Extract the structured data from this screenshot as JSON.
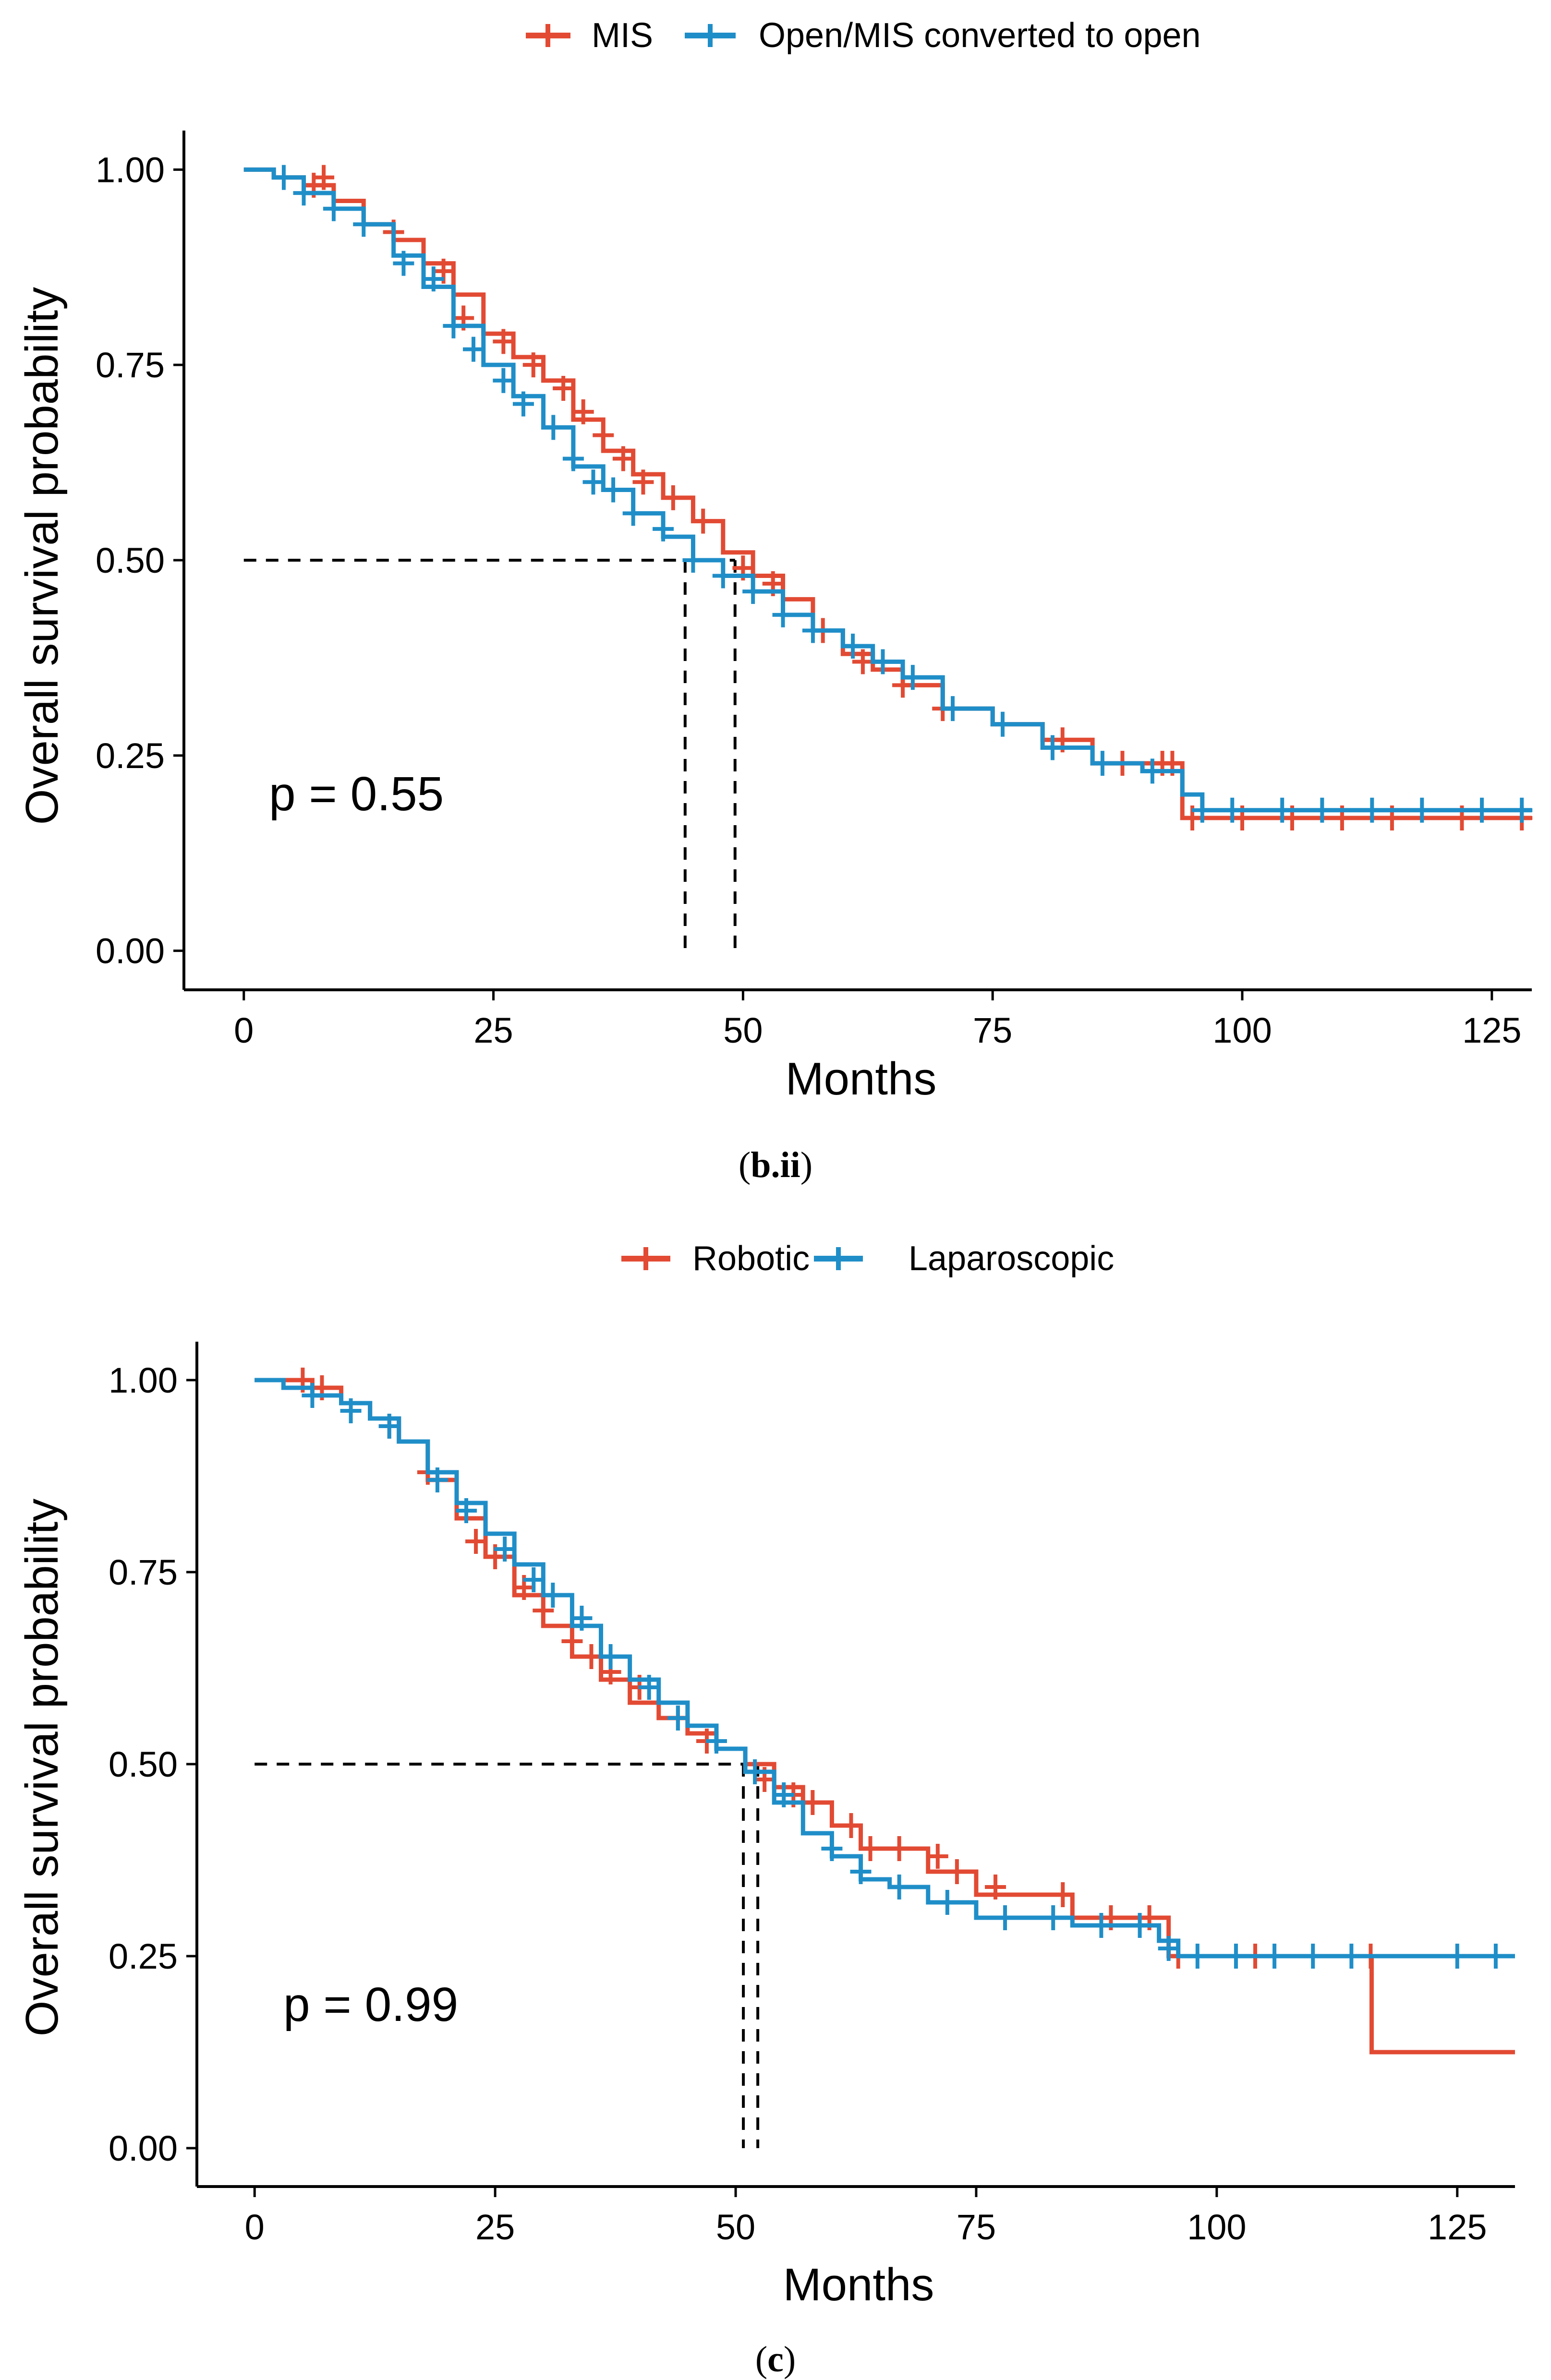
{
  "colors": {
    "series_a": "#e24a33",
    "series_b": "#1f8ec8",
    "axis": "#000000",
    "reference": "#000000"
  },
  "chart_data": [
    {
      "type": "line",
      "subtype": "kaplan-meier",
      "title": "",
      "xlabel": "Months",
      "ylabel": "Overall survival probability",
      "xlim": [
        -6,
        129
      ],
      "ylim": [
        -0.05,
        1.05
      ],
      "x_ticks": [
        0,
        25,
        50,
        75,
        100,
        125
      ],
      "y_ticks": [
        0,
        0.25,
        0.5,
        0.75,
        1.0
      ],
      "x_tick_labels": [
        "0",
        "25",
        "50",
        "75",
        "100",
        "125"
      ],
      "y_tick_labels": [
        "0.00",
        "0.25",
        "0.50",
        "0.75",
        "1.00"
      ],
      "grid": false,
      "legend_position": "top",
      "annotation": "p = 0.55",
      "annotation_at": [
        2.5,
        0.19
      ],
      "median_reference": {
        "y": 0.5,
        "x_start": 0,
        "x_values": [
          44.2,
          49.2
        ]
      },
      "caption_bold": "b.ii",
      "caption_open": "(",
      "caption_close": ")",
      "series": [
        {
          "name": "MIS",
          "color": "#e24a33",
          "x": [
            0,
            3,
            6,
            9,
            12,
            15,
            18,
            21,
            24,
            27,
            30,
            33,
            36,
            39,
            42,
            45,
            48,
            51,
            54,
            57,
            60,
            63,
            66,
            70,
            75,
            80,
            85,
            90,
            94,
            96,
            100,
            110,
            120,
            129
          ],
          "y": [
            1.0,
            0.99,
            0.98,
            0.96,
            0.93,
            0.91,
            0.88,
            0.84,
            0.79,
            0.76,
            0.73,
            0.68,
            0.64,
            0.61,
            0.58,
            0.55,
            0.51,
            0.48,
            0.45,
            0.41,
            0.38,
            0.36,
            0.34,
            0.31,
            0.29,
            0.27,
            0.24,
            0.24,
            0.17,
            0.17,
            0.17,
            0.17,
            0.17,
            0.17
          ],
          "censor_x": [
            7,
            8,
            15,
            20,
            22,
            26,
            29,
            32,
            34,
            36,
            38,
            40,
            43,
            46,
            50,
            53,
            58,
            62,
            66,
            70,
            82,
            88,
            92,
            93,
            95,
            100,
            105,
            110,
            115,
            122,
            128
          ],
          "censor_y": [
            0.98,
            0.99,
            0.92,
            0.87,
            0.81,
            0.78,
            0.75,
            0.72,
            0.69,
            0.66,
            0.63,
            0.6,
            0.58,
            0.55,
            0.49,
            0.47,
            0.41,
            0.37,
            0.34,
            0.31,
            0.27,
            0.24,
            0.24,
            0.24,
            0.17,
            0.17,
            0.17,
            0.17,
            0.17,
            0.17,
            0.17
          ]
        },
        {
          "name": "Open/MIS converted to open",
          "color": "#1f8ec8",
          "x": [
            0,
            3,
            6,
            9,
            12,
            15,
            18,
            21,
            24,
            27,
            30,
            33,
            36,
            39,
            42,
            45,
            48,
            51,
            54,
            57,
            60,
            63,
            66,
            70,
            75,
            80,
            85,
            90,
            94,
            96,
            100,
            110,
            120,
            129
          ],
          "y": [
            1.0,
            0.99,
            0.97,
            0.95,
            0.93,
            0.89,
            0.85,
            0.8,
            0.75,
            0.71,
            0.67,
            0.62,
            0.59,
            0.56,
            0.53,
            0.5,
            0.48,
            0.46,
            0.43,
            0.41,
            0.39,
            0.37,
            0.35,
            0.31,
            0.29,
            0.26,
            0.24,
            0.23,
            0.2,
            0.18,
            0.18,
            0.18,
            0.18,
            0.18
          ],
          "censor_x": [
            4,
            6,
            9,
            12,
            16,
            19,
            21,
            23,
            26,
            28,
            31,
            33,
            35,
            37,
            39,
            42,
            45,
            48,
            51,
            54,
            57,
            61,
            64,
            67,
            71,
            76,
            81,
            86,
            91,
            96,
            99,
            104,
            108,
            113,
            118,
            124,
            128
          ],
          "censor_y": [
            0.99,
            0.97,
            0.95,
            0.93,
            0.88,
            0.86,
            0.8,
            0.77,
            0.73,
            0.7,
            0.67,
            0.63,
            0.6,
            0.59,
            0.56,
            0.54,
            0.5,
            0.48,
            0.46,
            0.43,
            0.41,
            0.39,
            0.37,
            0.35,
            0.31,
            0.29,
            0.26,
            0.24,
            0.23,
            0.18,
            0.18,
            0.18,
            0.18,
            0.18,
            0.18,
            0.18,
            0.18
          ]
        }
      ]
    },
    {
      "type": "line",
      "subtype": "kaplan-meier",
      "title": "",
      "xlabel": "Months",
      "ylabel": "Overall survival probability",
      "xlim": [
        -6,
        131
      ],
      "ylim": [
        -0.05,
        1.05
      ],
      "x_ticks": [
        0,
        25,
        50,
        75,
        100,
        125
      ],
      "y_ticks": [
        0,
        0.25,
        0.5,
        0.75,
        1.0
      ],
      "x_tick_labels": [
        "0",
        "25",
        "50",
        "75",
        "100",
        "125"
      ],
      "y_tick_labels": [
        "0.00",
        "0.25",
        "0.50",
        "0.75",
        "1.00"
      ],
      "grid": false,
      "legend_position": "top",
      "annotation": "p = 0.99",
      "annotation_at": [
        2.5,
        0.19
      ],
      "median_reference": {
        "y": 0.5,
        "x_start": 0,
        "x_values": [
          50.8,
          52.3
        ]
      },
      "caption_bold": "c",
      "caption_open": "(",
      "caption_close": ")",
      "series": [
        {
          "name": "Robotic",
          "color": "#e24a33",
          "x": [
            0,
            3,
            6,
            9,
            12,
            15,
            18,
            21,
            24,
            27,
            30,
            33,
            36,
            39,
            42,
            45,
            48,
            51,
            54,
            57,
            60,
            63,
            66,
            70,
            75,
            80,
            85,
            90,
            95,
            100,
            110,
            116,
            116.1,
            125,
            131
          ],
          "y": [
            1.0,
            1.0,
            0.99,
            0.97,
            0.95,
            0.92,
            0.87,
            0.82,
            0.77,
            0.72,
            0.68,
            0.64,
            0.61,
            0.58,
            0.56,
            0.54,
            0.52,
            0.5,
            0.47,
            0.45,
            0.42,
            0.39,
            0.39,
            0.36,
            0.33,
            0.33,
            0.3,
            0.3,
            0.25,
            0.25,
            0.25,
            0.25,
            0.125,
            0.125,
            0.125
          ],
          "censor_x": [
            5,
            7,
            14,
            18,
            23,
            25,
            28,
            30,
            33,
            35,
            37,
            40,
            44,
            47,
            53,
            56,
            58,
            62,
            64,
            67,
            71,
            73,
            77,
            84,
            89,
            93,
            96,
            104,
            116
          ],
          "censor_y": [
            1.0,
            0.99,
            0.94,
            0.88,
            0.79,
            0.77,
            0.73,
            0.7,
            0.66,
            0.64,
            0.62,
            0.6,
            0.56,
            0.53,
            0.48,
            0.46,
            0.45,
            0.42,
            0.39,
            0.39,
            0.38,
            0.36,
            0.34,
            0.33,
            0.3,
            0.3,
            0.25,
            0.25,
            0.25
          ]
        },
        {
          "name": "Laparoscopic",
          "color": "#1f8ec8",
          "x": [
            0,
            3,
            6,
            9,
            12,
            15,
            18,
            21,
            24,
            27,
            30,
            33,
            36,
            39,
            42,
            45,
            48,
            51,
            54,
            57,
            60,
            63,
            66,
            70,
            75,
            80,
            85,
            90,
            94,
            96,
            100,
            110,
            120,
            131
          ],
          "y": [
            1.0,
            0.99,
            0.98,
            0.97,
            0.95,
            0.92,
            0.88,
            0.84,
            0.8,
            0.76,
            0.72,
            0.68,
            0.64,
            0.61,
            0.58,
            0.55,
            0.52,
            0.49,
            0.45,
            0.41,
            0.38,
            0.35,
            0.34,
            0.32,
            0.3,
            0.3,
            0.29,
            0.29,
            0.27,
            0.25,
            0.25,
            0.25,
            0.25,
            0.25
          ],
          "censor_x": [
            6,
            10,
            14,
            19,
            22,
            26,
            29,
            31,
            34,
            37,
            41,
            44,
            48,
            52,
            55,
            60,
            63,
            67,
            72,
            78,
            83,
            88,
            92,
            95,
            98,
            102,
            106,
            110,
            114,
            125,
            129
          ],
          "censor_y": [
            0.98,
            0.96,
            0.94,
            0.87,
            0.83,
            0.78,
            0.74,
            0.72,
            0.69,
            0.64,
            0.6,
            0.56,
            0.53,
            0.49,
            0.46,
            0.39,
            0.36,
            0.34,
            0.32,
            0.3,
            0.3,
            0.29,
            0.29,
            0.26,
            0.25,
            0.25,
            0.25,
            0.25,
            0.25,
            0.25,
            0.25
          ]
        }
      ]
    }
  ]
}
